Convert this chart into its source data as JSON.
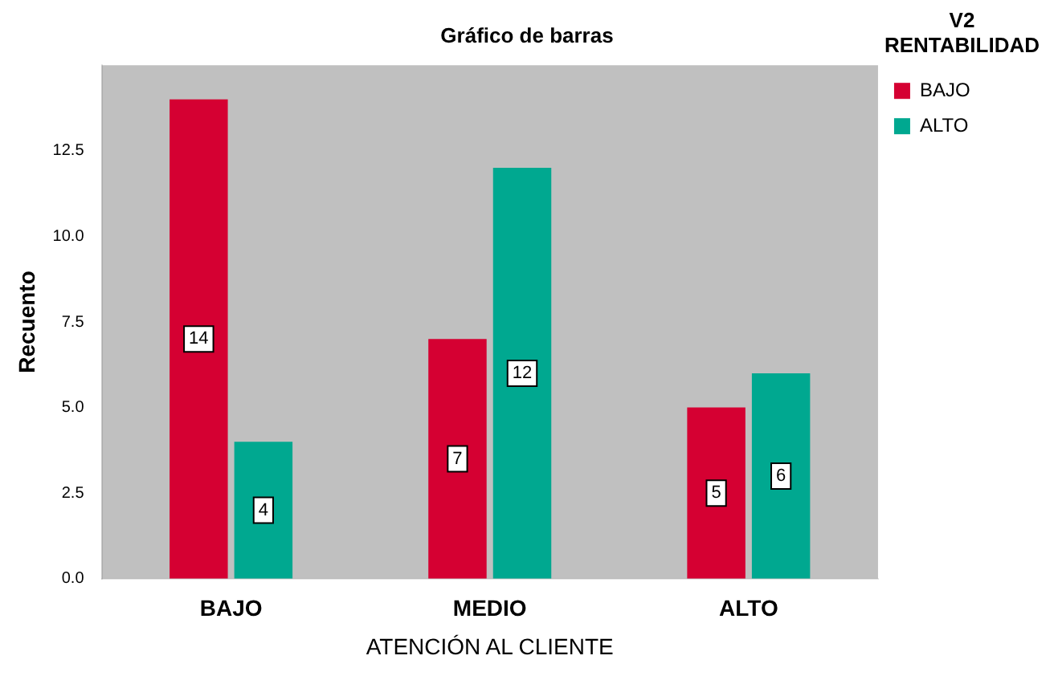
{
  "chart_data": {
    "type": "bar",
    "title": "Gráfico de barras",
    "xlabel": "ATENCIÓN AL CLIENTE",
    "ylabel": "Recuento",
    "legend_title": "V2 RENTABILIDAD",
    "categories": [
      "BAJO",
      "MEDIO",
      "ALTO"
    ],
    "series": [
      {
        "name": "BAJO",
        "color": "#d50032",
        "values": [
          14,
          7,
          5
        ]
      },
      {
        "name": "ALTO",
        "color": "#00a890",
        "values": [
          4,
          12,
          6
        ]
      }
    ],
    "ylim": [
      0,
      15
    ],
    "yticks": [
      {
        "value": 0,
        "label": "0.0"
      },
      {
        "value": 2.5,
        "label": "2.5"
      },
      {
        "value": 5,
        "label": "5.0"
      },
      {
        "value": 7.5,
        "label": "7.5"
      },
      {
        "value": 10,
        "label": "10.0"
      },
      {
        "value": 12.5,
        "label": "12.5"
      }
    ],
    "grid": false,
    "legend": "top right",
    "data_labels": true
  }
}
